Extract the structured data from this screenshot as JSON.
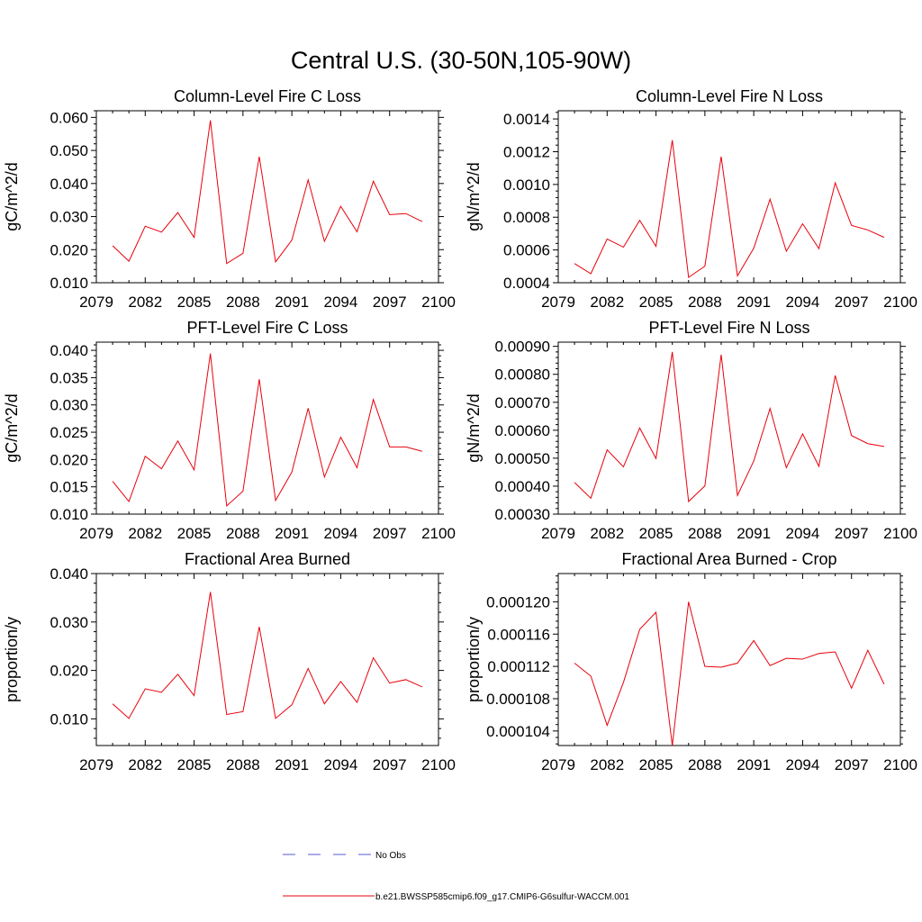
{
  "title": "Central U.S. (30-50N,105-90W)",
  "legend": {
    "entries": [
      {
        "label": "No Obs",
        "color": "#5a5ad8",
        "dash": true
      },
      {
        "label": "b.e21.BWSSP585cmip6.f09_g17.CMIP6-G6sulfur-WACCM.001",
        "color": "#e8000b",
        "dash": false
      }
    ]
  },
  "chart_data": [
    {
      "type": "line",
      "title": "Column-Level Fire C Loss",
      "ylabel": "gC/m^2/d",
      "xlim": [
        2079,
        2100
      ],
      "ylim": [
        0.01,
        0.062
      ],
      "xticks": [
        "2079",
        "2082",
        "2085",
        "2088",
        "2091",
        "2094",
        "2097",
        "2100"
      ],
      "yticks": [
        "0.010",
        "0.020",
        "0.030",
        "0.040",
        "0.050",
        "0.060"
      ],
      "series": [
        {
          "color": "#e8000b",
          "x": [
            2080,
            2081,
            2082,
            2083,
            2084,
            2085,
            2086,
            2087,
            2088,
            2089,
            2090,
            2091,
            2092,
            2093,
            2094,
            2095,
            2096,
            2097,
            2098,
            2099
          ],
          "values": [
            0.0212,
            0.0165,
            0.0271,
            0.0253,
            0.0312,
            0.0237,
            0.0591,
            0.0158,
            0.0189,
            0.0481,
            0.0163,
            0.0229,
            0.0411,
            0.0225,
            0.0331,
            0.0254,
            0.0407,
            0.0306,
            0.0309,
            0.0285
          ]
        }
      ]
    },
    {
      "type": "line",
      "title": "Column-Level Fire N Loss",
      "ylabel": "gN/m^2/d",
      "xlim": [
        2079,
        2100
      ],
      "ylim": [
        0.0004,
        0.00145
      ],
      "xticks": [
        "2079",
        "2082",
        "2085",
        "2088",
        "2091",
        "2094",
        "2097",
        "2100"
      ],
      "yticks": [
        "0.0004",
        "0.0006",
        "0.0008",
        "0.0010",
        "0.0012",
        "0.0014"
      ],
      "series": [
        {
          "color": "#e8000b",
          "x": [
            2080,
            2081,
            2082,
            2083,
            2084,
            2085,
            2086,
            2087,
            2088,
            2089,
            2090,
            2091,
            2092,
            2093,
            2094,
            2095,
            2096,
            2097,
            2098,
            2099
          ],
          "values": [
            0.000517,
            0.000455,
            0.000667,
            0.000617,
            0.000781,
            0.000622,
            0.00127,
            0.000433,
            0.000501,
            0.00117,
            0.000442,
            0.000611,
            0.00091,
            0.000592,
            0.00076,
            0.000608,
            0.00101,
            0.00075,
            0.000722,
            0.000677
          ]
        }
      ]
    },
    {
      "type": "line",
      "title": "PFT-Level Fire C Loss",
      "ylabel": "gC/m^2/d",
      "xlim": [
        2079,
        2100
      ],
      "ylim": [
        0.01,
        0.0415
      ],
      "xticks": [
        "2079",
        "2082",
        "2085",
        "2088",
        "2091",
        "2094",
        "2097",
        "2100"
      ],
      "yticks": [
        "0.010",
        "0.015",
        "0.020",
        "0.025",
        "0.030",
        "0.035",
        "0.040"
      ],
      "series": [
        {
          "color": "#e8000b",
          "x": [
            2080,
            2081,
            2082,
            2083,
            2084,
            2085,
            2086,
            2087,
            2088,
            2089,
            2090,
            2091,
            2092,
            2093,
            2094,
            2095,
            2096,
            2097,
            2098,
            2099
          ],
          "values": [
            0.016,
            0.0123,
            0.0206,
            0.0183,
            0.0234,
            0.0181,
            0.0394,
            0.0115,
            0.0142,
            0.0347,
            0.0125,
            0.0177,
            0.0294,
            0.0168,
            0.0241,
            0.0185,
            0.031,
            0.0223,
            0.0223,
            0.0215
          ]
        }
      ]
    },
    {
      "type": "line",
      "title": "PFT-Level Fire N Loss",
      "ylabel": "gN/m^2/d",
      "xlim": [
        2079,
        2100
      ],
      "ylim": [
        0.0003,
        0.000915
      ],
      "xticks": [
        "2079",
        "2082",
        "2085",
        "2088",
        "2091",
        "2094",
        "2097",
        "2100"
      ],
      "yticks": [
        "0.00030",
        "0.00040",
        "0.00050",
        "0.00060",
        "0.00070",
        "0.00080",
        "0.00090"
      ],
      "series": [
        {
          "color": "#e8000b",
          "x": [
            2080,
            2081,
            2082,
            2083,
            2084,
            2085,
            2086,
            2087,
            2088,
            2089,
            2090,
            2091,
            2092,
            2093,
            2094,
            2095,
            2096,
            2097,
            2098,
            2099
          ],
          "values": [
            0.000413,
            0.000357,
            0.00053,
            0.000469,
            0.000608,
            0.000499,
            0.00088,
            0.000345,
            0.000401,
            0.00087,
            0.000367,
            0.00049,
            0.000678,
            0.000466,
            0.000587,
            0.000471,
            0.000796,
            0.000581,
            0.000552,
            0.000542
          ]
        }
      ]
    },
    {
      "type": "line",
      "title": "Fractional Area Burned",
      "ylabel": "proportion/y",
      "xlim": [
        2079,
        2100
      ],
      "ylim": [
        0.0045,
        0.04
      ],
      "xticks": [
        "2079",
        "2082",
        "2085",
        "2088",
        "2091",
        "2094",
        "2097",
        "2100"
      ],
      "yticks": [
        "0.010",
        "0.020",
        "0.030",
        "0.040"
      ],
      "series": [
        {
          "color": "#e8000b",
          "x": [
            2080,
            2081,
            2082,
            2083,
            2084,
            2085,
            2086,
            2087,
            2088,
            2089,
            2090,
            2091,
            2092,
            2093,
            2094,
            2095,
            2096,
            2097,
            2098,
            2099
          ],
          "values": [
            0.0131,
            0.0101,
            0.0162,
            0.0155,
            0.0192,
            0.0148,
            0.0362,
            0.0109,
            0.0115,
            0.029,
            0.0101,
            0.0129,
            0.0204,
            0.0131,
            0.0177,
            0.0134,
            0.0226,
            0.0174,
            0.0181,
            0.0166
          ]
        }
      ]
    },
    {
      "type": "line",
      "title": "Fractional Area Burned - Crop",
      "ylabel": "proportion/y",
      "xlim": [
        2079,
        2100
      ],
      "ylim": [
        0.0001022,
        0.0001235
      ],
      "xticks": [
        "2079",
        "2082",
        "2085",
        "2088",
        "2091",
        "2094",
        "2097",
        "2100"
      ],
      "yticks": [
        "0.000104",
        "0.000108",
        "0.000112",
        "0.000116",
        "0.000120"
      ],
      "series": [
        {
          "color": "#e8000b",
          "x": [
            2080,
            2081,
            2082,
            2083,
            2084,
            2085,
            2086,
            2087,
            2088,
            2089,
            2090,
            2091,
            2092,
            2093,
            2094,
            2095,
            2096,
            2097,
            2098,
            2099
          ],
          "values": [
            0.0001124,
            0.0001108,
            0.0001047,
            0.00011,
            0.0001166,
            0.0001187,
            0.0001022,
            0.00012,
            0.000112,
            0.0001119,
            0.0001124,
            0.0001152,
            0.0001121,
            0.000113,
            0.0001129,
            0.0001136,
            0.0001138,
            0.0001093,
            0.000114,
            0.0001098
          ]
        }
      ]
    }
  ]
}
